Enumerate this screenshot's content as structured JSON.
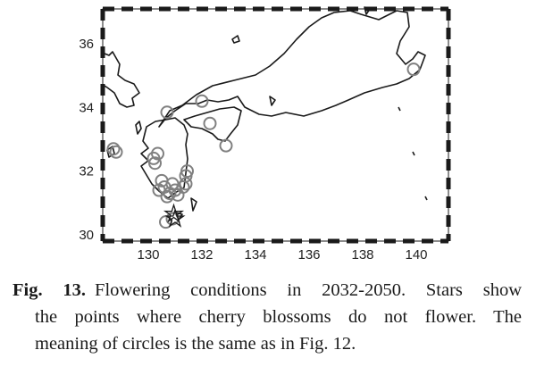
{
  "map": {
    "x_ticks": [
      "130",
      "132",
      "134",
      "136",
      "138",
      "140"
    ],
    "y_ticks": [
      "30",
      "32",
      "34",
      "36"
    ],
    "x_range": [
      128.3,
      141.2
    ],
    "y_range": [
      29.8,
      37.1
    ],
    "colors": {
      "land_outline": "#1a1a1a",
      "circle": "#808080",
      "star": "#1a1a1a",
      "frame": "#1a1a1a"
    },
    "circles": [
      {
        "lon": 128.7,
        "lat": 32.7
      },
      {
        "lon": 128.8,
        "lat": 32.6
      },
      {
        "lon": 130.2,
        "lat": 32.4
      },
      {
        "lon": 130.35,
        "lat": 32.55
      },
      {
        "lon": 130.25,
        "lat": 32.25
      },
      {
        "lon": 130.7,
        "lat": 33.85
      },
      {
        "lon": 132.3,
        "lat": 33.5
      },
      {
        "lon": 132.0,
        "lat": 34.2
      },
      {
        "lon": 132.9,
        "lat": 32.8
      },
      {
        "lon": 139.9,
        "lat": 35.2
      },
      {
        "lon": 130.5,
        "lat": 31.7
      },
      {
        "lon": 130.6,
        "lat": 31.5
      },
      {
        "lon": 130.4,
        "lat": 31.4
      },
      {
        "lon": 130.8,
        "lat": 31.3
      },
      {
        "lon": 131.0,
        "lat": 31.4
      },
      {
        "lon": 130.7,
        "lat": 31.2
      },
      {
        "lon": 131.1,
        "lat": 31.25
      },
      {
        "lon": 131.3,
        "lat": 31.5
      },
      {
        "lon": 131.4,
        "lat": 31.6
      },
      {
        "lon": 131.4,
        "lat": 31.85
      },
      {
        "lon": 131.45,
        "lat": 32.0
      },
      {
        "lon": 130.9,
        "lat": 31.6
      },
      {
        "lon": 130.65,
        "lat": 30.4
      },
      {
        "lon": 130.9,
        "lat": 30.5
      }
    ],
    "stars": [
      {
        "lon": 130.95,
        "lat": 30.65
      },
      {
        "lon": 131.0,
        "lat": 30.5
      }
    ]
  },
  "caption": {
    "label": "Fig. 13.",
    "line1": "Flowering conditions in 2032-2050. Stars show",
    "line2": "the points where cherry blossoms do not flower. The",
    "line3": "meaning of circles is the same as in Fig. 12."
  }
}
